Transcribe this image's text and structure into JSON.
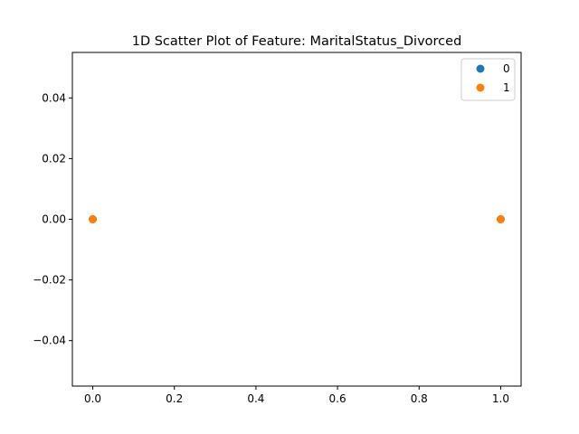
{
  "chart_data": {
    "type": "scatter",
    "title": "1D Scatter Plot of Feature: MaritalStatus_Divorced",
    "xlabel": "",
    "ylabel": "",
    "xlim": [
      -0.05,
      1.05
    ],
    "ylim": [
      -0.055,
      0.055
    ],
    "xticks": [
      0.0,
      0.2,
      0.4,
      0.6,
      0.8,
      1.0
    ],
    "xtick_labels": [
      "0.0",
      "0.2",
      "0.4",
      "0.6",
      "0.8",
      "1.0"
    ],
    "yticks": [
      0.04,
      0.02,
      0.0,
      -0.02,
      -0.04
    ],
    "ytick_labels": [
      "0.04",
      "0.02",
      "0.00",
      "−0.02",
      "−0.04"
    ],
    "grid": false,
    "legend_position": "top-right",
    "series": [
      {
        "name": "0",
        "color": "#1f77b4",
        "points": [
          {
            "x": 0,
            "y": 0
          },
          {
            "x": 1,
            "y": 0
          }
        ]
      },
      {
        "name": "1",
        "color": "#ff7f0e",
        "points": [
          {
            "x": 0,
            "y": 0
          },
          {
            "x": 1,
            "y": 0
          }
        ]
      }
    ]
  }
}
